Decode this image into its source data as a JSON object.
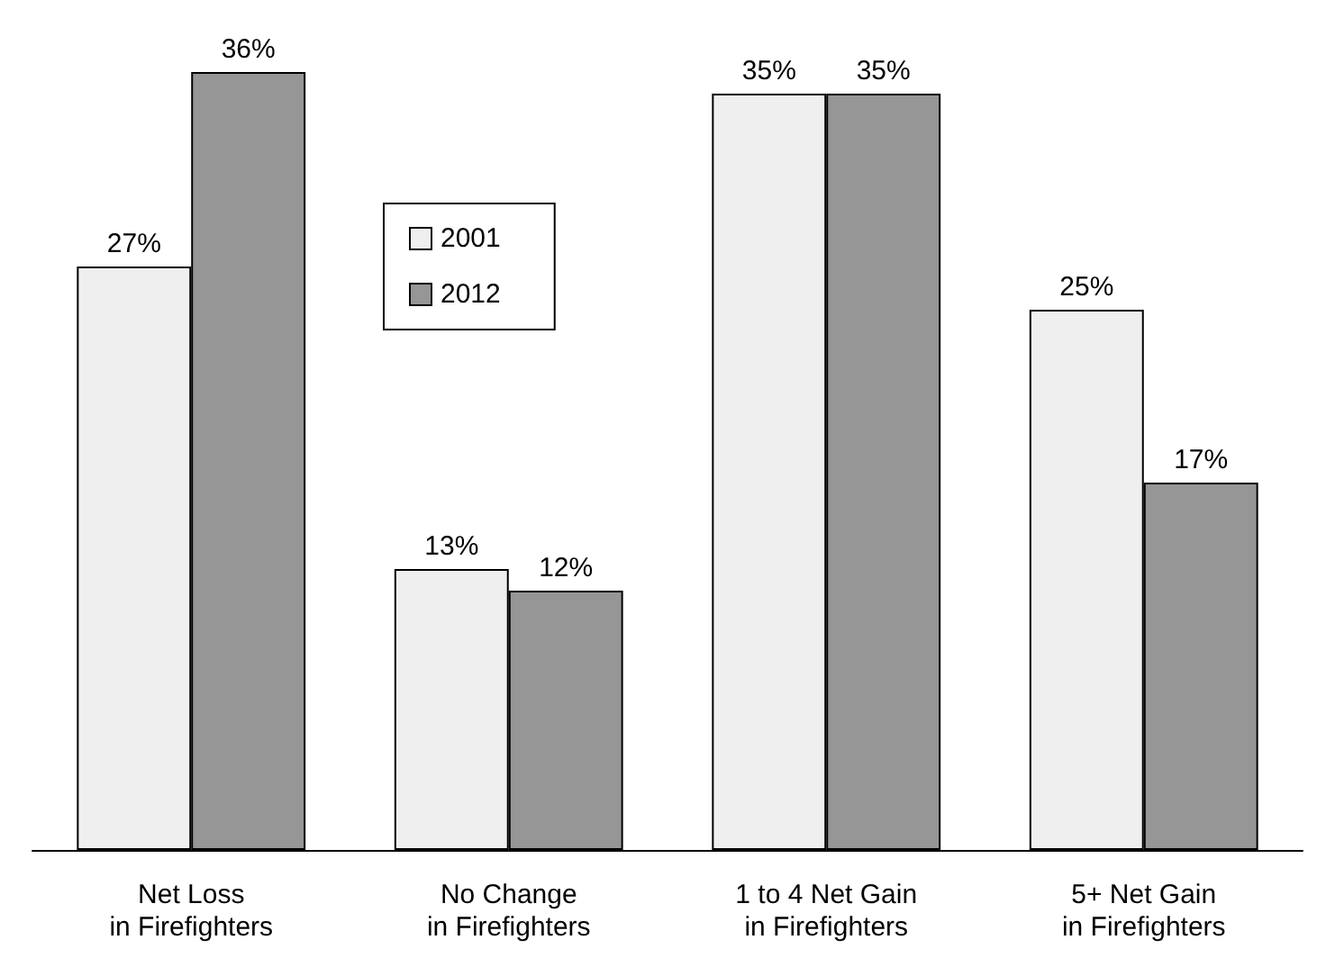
{
  "chart_data": {
    "type": "bar",
    "categories": [
      "Net Loss\nin Firefighters",
      "No Change\nin Firefighters",
      "1 to 4 Net Gain\nin Firefighters",
      "5+ Net Gain\nin Firefighters"
    ],
    "series": [
      {
        "name": "2001",
        "color": "#efefef",
        "values": [
          27,
          13,
          35,
          25
        ],
        "value_labels": [
          "27%",
          "13%",
          "35%",
          "25%"
        ]
      },
      {
        "name": "2012",
        "color": "#969696",
        "values": [
          36,
          12,
          35,
          17
        ],
        "value_labels": [
          "36%",
          "12%",
          "35%",
          "17%"
        ]
      }
    ],
    "legend": "top left",
    "grid": false
  }
}
